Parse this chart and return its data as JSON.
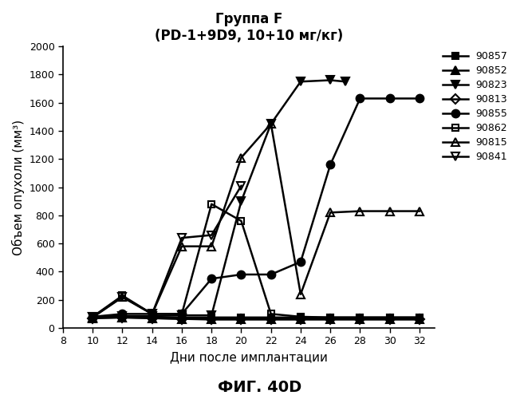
{
  "title_line1": "Группа F",
  "title_line2": "(PD-1+9D9, 10+10 мг/кг)",
  "xlabel": "Дни после имплантации",
  "ylabel": "Объем опухоли (мм³)",
  "fig_label": "ФИГ. 40D",
  "xlim": [
    8,
    33
  ],
  "ylim": [
    0,
    2000
  ],
  "xticks": [
    8,
    10,
    12,
    14,
    16,
    18,
    20,
    22,
    24,
    26,
    28,
    30,
    32
  ],
  "yticks": [
    0,
    200,
    400,
    600,
    800,
    1000,
    1200,
    1400,
    1600,
    1800,
    2000
  ],
  "series": [
    {
      "label": "90857",
      "marker": "s",
      "markersize": 6,
      "color": "#000000",
      "fillstyle": "full",
      "x": [
        10,
        12,
        14,
        16,
        18,
        20,
        22,
        24,
        26,
        28,
        30,
        32
      ],
      "y": [
        75,
        80,
        75,
        75,
        75,
        75,
        75,
        75,
        75,
        75,
        75,
        75
      ]
    },
    {
      "label": "90852",
      "marker": "^",
      "markersize": 7,
      "color": "#000000",
      "fillstyle": "full",
      "x": [
        10,
        12,
        14,
        16,
        18,
        20,
        22,
        24,
        26,
        28,
        30,
        32
      ],
      "y": [
        70,
        75,
        70,
        65,
        60,
        60,
        60,
        60,
        60,
        60,
        60,
        60
      ]
    },
    {
      "label": "90823",
      "marker": "v",
      "markersize": 7,
      "color": "#000000",
      "fillstyle": "full",
      "x": [
        10,
        12,
        14,
        16,
        18,
        20,
        22,
        24,
        26,
        27
      ],
      "y": [
        80,
        85,
        85,
        90,
        90,
        900,
        1450,
        1750,
        1760,
        1750
      ]
    },
    {
      "label": "90813",
      "marker": "D",
      "markersize": 6,
      "color": "#000000",
      "fillstyle": "none",
      "x": [
        10,
        12,
        14,
        16,
        18,
        20,
        22,
        24,
        26,
        28,
        30,
        32
      ],
      "y": [
        70,
        75,
        70,
        65,
        65,
        65,
        65,
        65,
        65,
        65,
        65,
        65
      ]
    },
    {
      "label": "90855",
      "marker": "o",
      "markersize": 7,
      "color": "#000000",
      "fillstyle": "full",
      "x": [
        10,
        12,
        14,
        16,
        18,
        20,
        22,
        24,
        26,
        28,
        30,
        32
      ],
      "y": [
        80,
        100,
        100,
        100,
        350,
        380,
        380,
        470,
        1160,
        1630,
        1630,
        1630
      ]
    },
    {
      "label": "90862",
      "marker": "s",
      "markersize": 6,
      "color": "#000000",
      "fillstyle": "none",
      "x": [
        10,
        12,
        14,
        16,
        18,
        20,
        22,
        24,
        26,
        28,
        30,
        32
      ],
      "y": [
        80,
        230,
        100,
        100,
        880,
        760,
        100,
        80,
        75,
        75,
        75,
        75
      ]
    },
    {
      "label": "90815",
      "marker": "^",
      "markersize": 7,
      "color": "#000000",
      "fillstyle": "none",
      "x": [
        10,
        12,
        14,
        16,
        18,
        20,
        22,
        24,
        26,
        28,
        30,
        32
      ],
      "y": [
        75,
        220,
        100,
        580,
        580,
        1210,
        1450,
        240,
        820,
        830,
        830,
        830
      ]
    },
    {
      "label": "90841",
      "marker": "v",
      "markersize": 7,
      "color": "#000000",
      "fillstyle": "none",
      "x": [
        10,
        12,
        14,
        16,
        18,
        20
      ],
      "y": [
        80,
        220,
        100,
        640,
        660,
        1010
      ]
    }
  ]
}
